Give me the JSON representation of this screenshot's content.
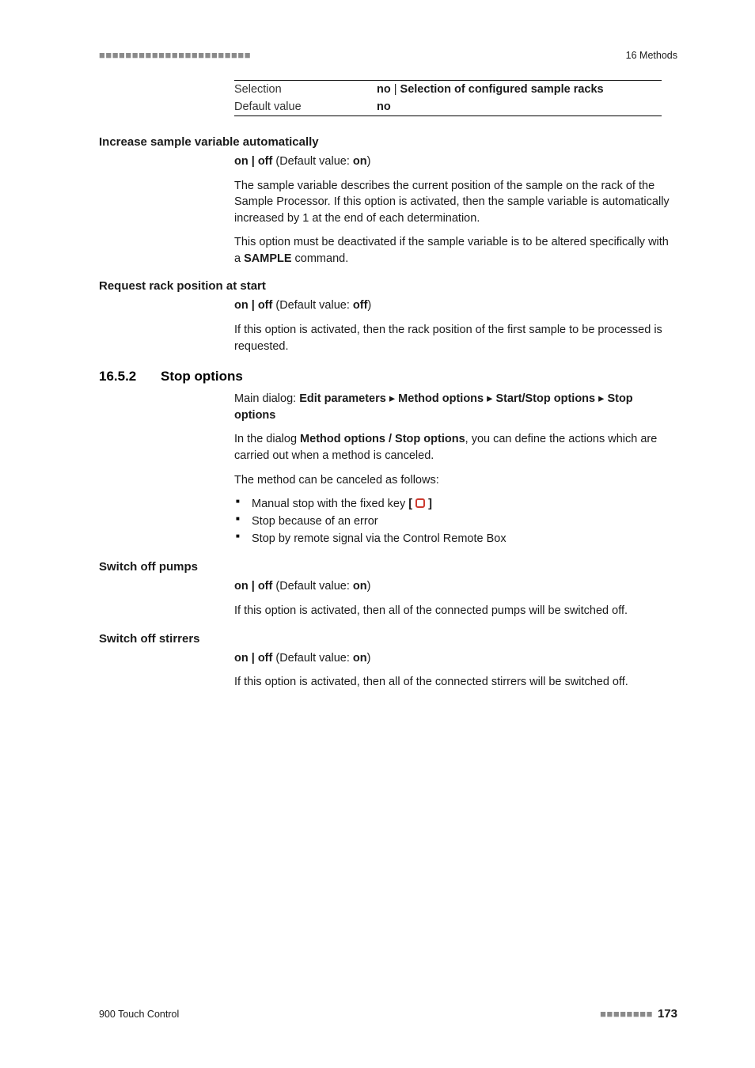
{
  "header": {
    "dots": "■■■■■■■■■■■■■■■■■■■■■■■",
    "right": "16 Methods"
  },
  "selection_table": {
    "row1_label": "Selection",
    "row1_value_prefix": "no",
    "row1_value_sep": " | ",
    "row1_value_rest": "Selection of configured sample racks",
    "row2_label": "Default value",
    "row2_value": "no"
  },
  "increase_heading": "Increase sample variable automatically",
  "increase": {
    "onoff_pre": "on | off",
    "onoff_mid": " (Default value: ",
    "onoff_val": "on",
    "onoff_post": ")",
    "p1": "The sample variable describes the current position of the sample on the rack of the Sample Processor. If this option is activated, then the sample variable is automatically increased by 1 at the end of each determination.",
    "p2_a": "This option must be deactivated if the sample variable is to be altered specifically with a ",
    "p2_b": "SAMPLE",
    "p2_c": " command."
  },
  "request_heading": "Request rack position at start",
  "request": {
    "onoff_pre": "on | off",
    "onoff_mid": " (Default value: ",
    "onoff_val": "off",
    "onoff_post": ")",
    "p1": "If this option is activated, then the rack position of the first sample to be processed is requested."
  },
  "section": {
    "num": "16.5.2",
    "title": "Stop options"
  },
  "stop": {
    "main_a": "Main dialog: ",
    "main_b": "Edit parameters",
    "sep": " ▸ ",
    "main_c": "Method options",
    "main_d": "Start/Stop options",
    "main_e": "Stop options",
    "p2_a": "In the dialog ",
    "p2_b": "Method options / Stop options",
    "p2_c": ", you can define the actions which are carried out when a method is canceled.",
    "p3": "The method can be canceled as follows:",
    "b1_a": "Manual stop with the fixed key ",
    "b1_lb": "[ ",
    "b1_rb": " ]",
    "b2": "Stop because of an error",
    "b3": "Stop by remote signal via the Control Remote Box"
  },
  "pumps_heading": "Switch off pumps",
  "pumps": {
    "onoff_pre": "on | off",
    "onoff_mid": " (Default value: ",
    "onoff_val": "on",
    "onoff_post": ")",
    "p1": "If this option is activated, then all of the connected pumps will be switched off."
  },
  "stirrers_heading": "Switch off stirrers",
  "stirrers": {
    "onoff_pre": "on | off",
    "onoff_mid": " (Default value: ",
    "onoff_val": "on",
    "onoff_post": ")",
    "p1": "If this option is activated, then all of the connected stirrers will be switched off."
  },
  "footer": {
    "left": "900 Touch Control",
    "dots": "■■■■■■■■",
    "page": "173"
  }
}
